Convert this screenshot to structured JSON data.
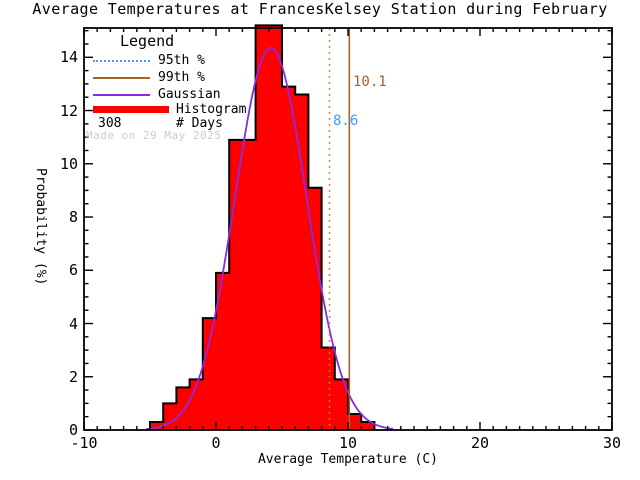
{
  "title": "Average Temperatures at FrancesKelsey Station during February",
  "watermark": "Made on 29 May 2025",
  "legend": {
    "title": "Legend",
    "items": [
      {
        "label": "95th %",
        "swatch": "dotted-line",
        "color": "#3E9BFF"
      },
      {
        "label": "99th %",
        "swatch": "solid-line",
        "color": "#A2622D"
      },
      {
        "label": "Gaussian",
        "swatch": "solid-line",
        "color": "#8A2BE2"
      },
      {
        "label": "Histogram",
        "swatch": "thick-bar",
        "color": "#FF0000"
      },
      {
        "label": "# Days",
        "value": "308",
        "swatch": "none"
      }
    ]
  },
  "chart_data": {
    "type": "bar",
    "subtype": "histogram-with-gaussian-fit",
    "title": "Average Temperatures at FrancesKelsey Station during February",
    "xlabel": "Average Temperature (C)",
    "ylabel": "Probability (%)",
    "xlim": [
      -10,
      30
    ],
    "ylim": [
      0,
      15.1
    ],
    "grid": false,
    "x_major_ticks": [
      -10,
      0,
      10,
      20,
      30
    ],
    "x_minor_step": 1,
    "y_major_ticks": [
      0,
      2,
      4,
      6,
      8,
      10,
      12,
      14
    ],
    "y_minor_step": 0.5,
    "n_days": 308,
    "histogram": {
      "name": "Histogram",
      "color": "#FF0000",
      "outline_color": "#000000",
      "bin_width": 1,
      "bin_left_edges": [
        -5,
        -4,
        -3,
        -2,
        -1,
        0,
        1,
        2,
        3,
        4,
        5,
        6,
        7,
        8,
        9,
        10,
        11
      ],
      "values_percent": [
        0.3,
        1.0,
        1.6,
        1.9,
        4.2,
        5.9,
        10.9,
        10.9,
        15.2,
        15.2,
        12.9,
        12.6,
        9.1,
        3.1,
        1.9,
        0.6,
        0.3
      ]
    },
    "gaussian": {
      "name": "Gaussian",
      "color": "#8A2BE2",
      "mean": 4.15,
      "sigma": 2.72,
      "peak_percent": 14.35,
      "x_start": -5.3,
      "x_end": 13.5
    },
    "percentile_95": {
      "name": "95th %",
      "value": 8.6,
      "label": "8.6",
      "line_style": "dotted",
      "line_color": "#C08040",
      "label_color": "#3E9BFF"
    },
    "percentile_99": {
      "name": "99th %",
      "value": 10.1,
      "label": "10.1",
      "line_style": "solid",
      "line_color": "#A2622D",
      "label_color": "#A2622D"
    }
  }
}
